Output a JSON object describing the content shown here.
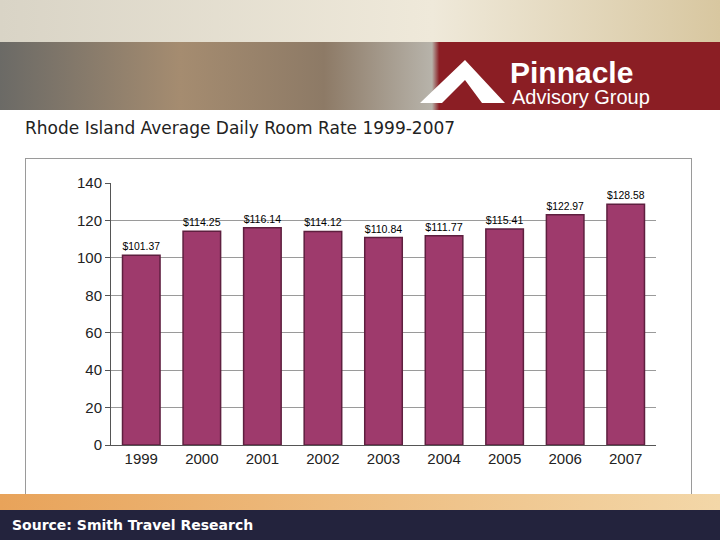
{
  "header": {
    "brand": "Pinnacle",
    "brand_sub": "Advisory Group"
  },
  "footer": "Source: Smith Travel Research",
  "chart_data": {
    "type": "bar",
    "title": "Rhode Island Average Daily Room Rate 1999-2007",
    "categories": [
      "1999",
      "2000",
      "2001",
      "2002",
      "2003",
      "2004",
      "2005",
      "2006",
      "2007"
    ],
    "values": [
      101.37,
      114.25,
      116.14,
      114.12,
      110.84,
      111.77,
      115.41,
      122.97,
      128.58
    ],
    "value_labels": [
      "$101.37",
      "$114.25",
      "$116.14",
      "$114.12",
      "$110.84",
      "$111.77",
      "$115.41",
      "$122.97",
      "$128.58"
    ],
    "color": "#9e3a6c",
    "ylim": [
      0,
      140
    ],
    "yticks": [
      0,
      20,
      40,
      60,
      80,
      100,
      120,
      140
    ],
    "grid": true,
    "data_labels": true
  }
}
